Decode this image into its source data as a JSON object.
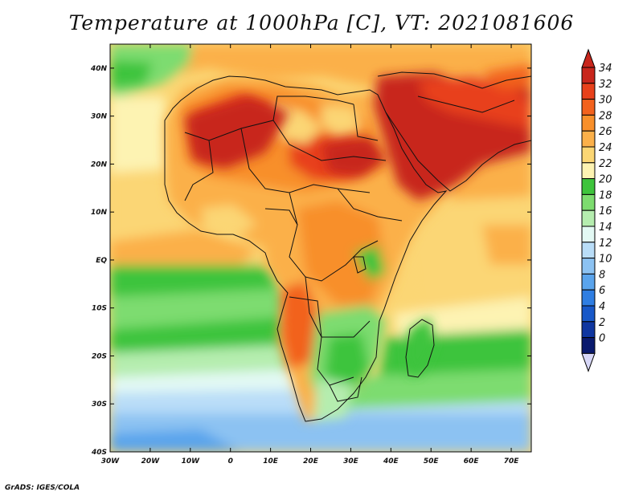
{
  "title": "Temperature at 1000hPa [C], VT: 2021081606",
  "credit": "GrADS: IGES/COLA",
  "map": {
    "lon_ticks": [
      "30W",
      "20W",
      "10W",
      "0",
      "10E",
      "20E",
      "30E",
      "40E",
      "50E",
      "60E",
      "70E"
    ],
    "lat_ticks": [
      "40N",
      "30N",
      "20N",
      "10N",
      "EQ",
      "10S",
      "20S",
      "30S",
      "40S"
    ]
  },
  "colorbar": {
    "levels": [
      "34",
      "32",
      "30",
      "28",
      "26",
      "24",
      "22",
      "20",
      "18",
      "16",
      "14",
      "12",
      "10",
      "8",
      "6",
      "4",
      "2",
      "0"
    ],
    "colors": [
      "#c8261c",
      "#e8411b",
      "#f2621d",
      "#f88f2a",
      "#fbb04a",
      "#fbd674",
      "#fdf3b2",
      "#3ec43c",
      "#7ddc6f",
      "#b5edaf",
      "#e3f9f4",
      "#b9ddf8",
      "#8cc2f2",
      "#5aa4ec",
      "#2f7ee2",
      "#1858c8",
      "#0f36a0",
      "#0a1a6e"
    ],
    "top_color": "#c8261c",
    "bottom_color": "#d8d8f8"
  }
}
